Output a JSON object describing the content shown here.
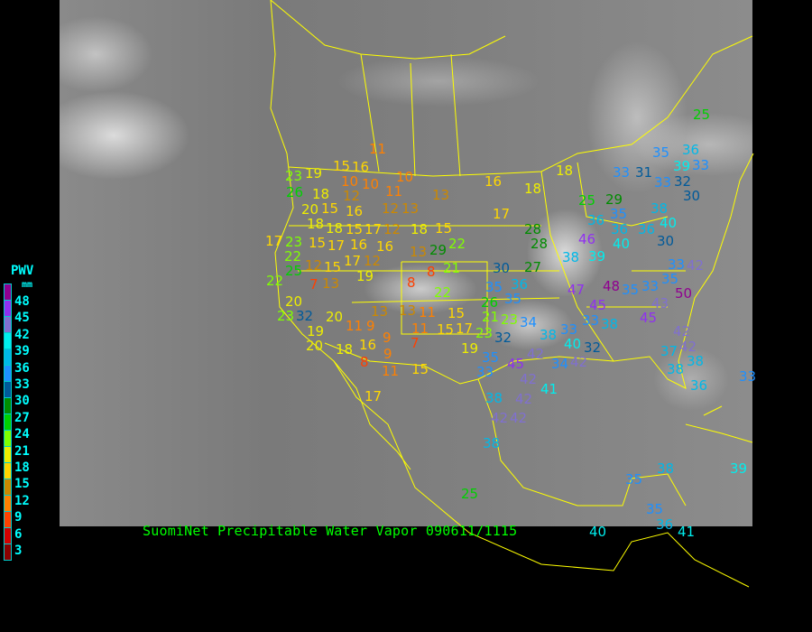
{
  "legend": {
    "title": "PWV",
    "unit": "mm",
    "labels": [
      "48",
      "45",
      "42",
      "39",
      "36",
      "33",
      "30",
      "27",
      "24",
      "21",
      "18",
      "15",
      "12",
      "9",
      "6",
      "3"
    ],
    "colors": [
      "#900090",
      "#9030f0",
      "#8070d0",
      "#00eeee",
      "#00b8e8",
      "#1e90ff",
      "#005a9a",
      "#008c00",
      "#00d000",
      "#80ff00",
      "#eeee00",
      "#ffd700",
      "#cc8800",
      "#ff8000",
      "#ff4000",
      "#d40000",
      "#8b0000"
    ]
  },
  "caption": "SuomiNet Precipitable Water Vapor 090611/1115",
  "colors": {
    "boundary": "#ffff00",
    "caption": "#00ff00",
    "legend_text": "#00ffff"
  },
  "stations": [
    "11",
    "15",
    "16",
    "10",
    "10",
    "10",
    "11",
    "12",
    "13",
    "16",
    "18",
    "19",
    "23",
    "26",
    "18",
    "20",
    "15",
    "16",
    "12",
    "13",
    "18",
    "18",
    "15",
    "17",
    "12",
    "18",
    "15",
    "17",
    "28",
    "28",
    "17",
    "23",
    "15",
    "17",
    "16",
    "16",
    "13",
    "29",
    "22",
    "22",
    "15",
    "17",
    "12",
    "12",
    "22",
    "25",
    "7",
    "13",
    "19",
    "8",
    "21",
    "8",
    "22",
    "30",
    "27",
    "35",
    "36",
    "35",
    "20",
    "23",
    "32",
    "19",
    "20",
    "11",
    "9",
    "13",
    "13",
    "11",
    "15",
    "15",
    "17",
    "23",
    "21",
    "26",
    "23",
    "32",
    "34",
    "20",
    "18",
    "16",
    "9",
    "11",
    "7",
    "9",
    "8",
    "11",
    "15",
    "19",
    "35",
    "33",
    "45",
    "42",
    "42",
    "38",
    "33",
    "41",
    "38",
    "42",
    "42",
    "42",
    "38",
    "25",
    "17",
    "18",
    "25",
    "29",
    "33",
    "31",
    "33",
    "32",
    "33",
    "35",
    "36",
    "25",
    "39",
    "30",
    "36",
    "35",
    "36",
    "40",
    "46",
    "38",
    "39",
    "38",
    "40",
    "36",
    "30",
    "33",
    "35",
    "42",
    "47",
    "48",
    "35",
    "33",
    "43",
    "50",
    "45",
    "45",
    "33",
    "38",
    "37",
    "42",
    "42",
    "38",
    "38",
    "36",
    "42",
    "34",
    "32",
    "40",
    "35",
    "38",
    "35",
    "36",
    "40",
    "41",
    "39",
    "33"
  ]
}
